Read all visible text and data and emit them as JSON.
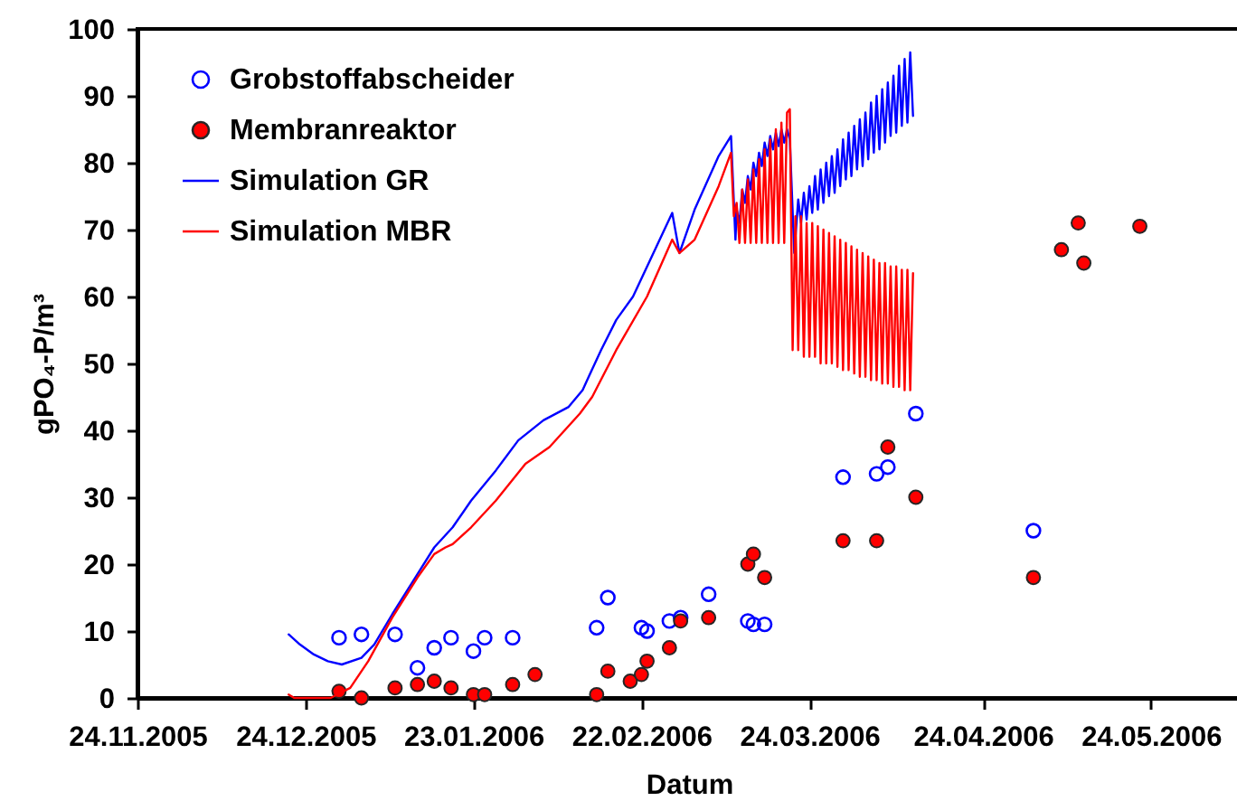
{
  "chart_data": {
    "type": "scatter",
    "xlabel": "Datum",
    "ylabel": "gPO₄-P/m³",
    "xlim": [
      "2005-11-24",
      "2006-06-09"
    ],
    "xticks": [
      {
        "value": "2005-11-24",
        "label": "24.11.2005"
      },
      {
        "value": "2005-12-24",
        "label": "24.12.2005"
      },
      {
        "value": "2006-01-23",
        "label": "23.01.2006"
      },
      {
        "value": "2006-02-22",
        "label": "22.02.2006"
      },
      {
        "value": "2006-03-24",
        "label": "24.03.2006"
      },
      {
        "value": "2006-04-24",
        "label": "24.04.2006"
      },
      {
        "value": "2006-05-24",
        "label": "24.05.2006"
      }
    ],
    "ylim": [
      0,
      100
    ],
    "yticks": [
      0,
      10,
      20,
      30,
      40,
      50,
      60,
      70,
      80,
      90,
      100
    ],
    "legend": "top left",
    "series": [
      {
        "name": "Grobstoffabscheider",
        "marker": "circle",
        "color": "#0000ff",
        "x": [
          "2005-12-30",
          "2006-01-03",
          "2006-01-09",
          "2006-01-13",
          "2006-01-16",
          "2006-01-19",
          "2006-01-23",
          "2006-01-25",
          "2006-01-30",
          "2006-02-14",
          "2006-02-16",
          "2006-02-22",
          "2006-02-23",
          "2006-02-27",
          "2006-03-01",
          "2006-03-06",
          "2006-03-13",
          "2006-03-14",
          "2006-03-16",
          "2006-03-30",
          "2006-04-05",
          "2006-04-07",
          "2006-04-12",
          "2006-05-03"
        ],
        "values": [
          9,
          9.5,
          9.5,
          4.5,
          7.5,
          9,
          7,
          9,
          9,
          10.5,
          15,
          10.5,
          10,
          11.5,
          12,
          15.5,
          11.5,
          11,
          11,
          33,
          33.5,
          34.5,
          42.5,
          25
        ]
      },
      {
        "name": "Membranreaktor",
        "marker": "circle",
        "color": "#ff0000",
        "x": [
          "2005-12-30",
          "2006-01-03",
          "2006-01-09",
          "2006-01-13",
          "2006-01-16",
          "2006-01-19",
          "2006-01-23",
          "2006-01-25",
          "2006-01-30",
          "2006-02-03",
          "2006-02-14",
          "2006-02-16",
          "2006-02-20",
          "2006-02-22",
          "2006-02-23",
          "2006-02-27",
          "2006-03-01",
          "2006-03-06",
          "2006-03-13",
          "2006-03-14",
          "2006-03-16",
          "2006-03-30",
          "2006-04-05",
          "2006-04-07",
          "2006-04-12",
          "2006-05-03",
          "2006-05-08",
          "2006-05-11",
          "2006-05-12",
          "2006-05-22"
        ],
        "values": [
          1,
          0,
          1.5,
          2,
          2.5,
          1.5,
          0.5,
          0.5,
          2,
          3.5,
          0.5,
          4,
          2.5,
          3.5,
          5.5,
          7.5,
          11.5,
          12,
          20,
          21.5,
          18,
          23.5,
          23.5,
          37.5,
          30,
          18,
          67,
          71,
          65,
          70.5
        ]
      },
      {
        "name": "Simulation GR",
        "type": "line",
        "color": "#0000ff",
        "x": [
          "2005-12-21",
          "2005-12-23",
          "2005-12-25T12:00",
          "2005-12-28",
          "2005-12-30T12:00",
          "2006-01-03",
          "2006-01-05T07:00",
          "2006-01-08T12:00",
          "2006-01-13",
          "2006-01-16",
          "2006-01-19T07:00",
          "2006-01-22T14:00",
          "2006-01-27",
          "2006-01-31",
          "2006-02-04T12:00",
          "2006-02-09",
          "2006-02-11T12:00",
          "2006-02-12T14:00",
          "2006-02-14T19:00",
          "2006-02-17T12:00",
          "2006-02-20T12:00",
          "2006-02-27T12:00",
          "2006-02-28T19:00",
          "2006-03-03T12:00",
          "2006-03-07T19:00",
          "2006-03-10",
          "2006-03-10T19:00",
          "2006-03-11",
          "2006-03-11T12:00",
          "2006-03-12",
          "2006-03-12T12:00",
          "2006-03-13",
          "2006-03-13T12:00",
          "2006-03-14",
          "2006-03-14T12:00",
          "2006-03-15",
          "2006-03-15T12:00",
          "2006-03-16",
          "2006-03-16T12:00",
          "2006-03-17",
          "2006-03-17T12:00",
          "2006-03-18",
          "2006-03-18T12:00",
          "2006-03-19",
          "2006-03-19T12:00",
          "2006-03-20",
          "2006-03-20T12:00",
          "2006-03-21T07:00",
          "2006-03-22",
          "2006-03-22T12:00",
          "2006-03-23",
          "2006-03-23T12:00",
          "2006-03-24",
          "2006-03-24T12:00",
          "2006-03-25",
          "2006-03-25T12:00",
          "2006-03-26",
          "2006-03-26T12:00",
          "2006-03-27",
          "2006-03-27T12:00",
          "2006-03-28",
          "2006-03-28T12:00",
          "2006-03-29",
          "2006-03-29T12:00",
          "2006-03-30",
          "2006-03-30T12:00",
          "2006-03-31",
          "2006-03-31T12:00",
          "2006-04-01",
          "2006-04-01T12:00",
          "2006-04-02",
          "2006-04-02T12:00",
          "2006-04-03",
          "2006-04-03T12:00",
          "2006-04-04",
          "2006-04-04T12:00",
          "2006-04-05",
          "2006-04-05T12:00",
          "2006-04-06",
          "2006-04-06T12:00",
          "2006-04-07",
          "2006-04-07T12:00",
          "2006-04-08",
          "2006-04-08T12:00",
          "2006-04-09",
          "2006-04-09T12:00",
          "2006-04-10",
          "2006-04-10T12:00",
          "2006-04-11",
          "2006-04-11T12:00"
        ],
        "values": [
          9.5,
          8,
          6.5,
          5.5,
          5,
          6,
          8,
          12.5,
          18.5,
          22.5,
          25.5,
          29.5,
          34,
          38.5,
          41.5,
          43.5,
          46,
          48,
          52,
          56.5,
          60,
          72.5,
          66.5,
          73,
          81,
          84,
          68.5,
          73,
          71,
          76,
          74,
          78,
          76,
          80,
          78,
          81.5,
          79.5,
          83,
          81,
          84,
          82,
          84.5,
          82.5,
          85,
          83,
          85,
          83.5,
          66.5,
          74.5,
          71,
          75.5,
          71.5,
          76.5,
          72.5,
          78,
          73,
          79,
          74,
          80,
          75,
          81,
          75.5,
          82,
          76.5,
          83.5,
          77.5,
          84.5,
          78,
          85.5,
          79,
          86.5,
          79.5,
          87.5,
          80.5,
          89,
          81.5,
          90,
          82,
          91,
          83,
          92,
          84,
          93,
          84.5,
          94.5,
          85.5,
          95.5,
          86,
          96.5,
          87
        ]
      },
      {
        "name": "Simulation MBR",
        "type": "line",
        "color": "#ff0000",
        "x": [
          "2005-12-21",
          "2005-12-22",
          "2005-12-28T12:00",
          "2006-01-01",
          "2006-01-04T05:00",
          "2006-01-08T12:00",
          "2006-01-13",
          "2006-01-16",
          "2006-01-18",
          "2006-01-19T07:00",
          "2006-01-22T14:00",
          "2006-01-27",
          "2006-02-01T07:00",
          "2006-02-05T14:00",
          "2006-02-11",
          "2006-02-13T05:00",
          "2006-02-17T12:00",
          "2006-02-23",
          "2006-02-27T12:00",
          "2006-02-28T19:00",
          "2006-03-03T12:00",
          "2006-03-07T19:00",
          "2006-03-10",
          "2006-03-10T12:00",
          "2006-03-11",
          "2006-03-11T12:00",
          "2006-03-12",
          "2006-03-12T12:00",
          "2006-03-13",
          "2006-03-13T12:00",
          "2006-03-14",
          "2006-03-14T12:00",
          "2006-03-15",
          "2006-03-15T12:00",
          "2006-03-16",
          "2006-03-16T12:00",
          "2006-03-17",
          "2006-03-17T12:00",
          "2006-03-18",
          "2006-03-18T12:00",
          "2006-03-19",
          "2006-03-19T12:00",
          "2006-03-20",
          "2006-03-20T12:00",
          "2006-03-21",
          "2006-03-21T12:00",
          "2006-03-22",
          "2006-03-22T12:00",
          "2006-03-23",
          "2006-03-23T12:00",
          "2006-03-24",
          "2006-03-24T12:00",
          "2006-03-25",
          "2006-03-25T12:00",
          "2006-03-26",
          "2006-03-26T12:00",
          "2006-03-27",
          "2006-03-27T12:00",
          "2006-03-28",
          "2006-03-28T12:00",
          "2006-03-29",
          "2006-03-29T12:00",
          "2006-03-30",
          "2006-03-30T12:00",
          "2006-03-31",
          "2006-03-31T12:00",
          "2006-04-01",
          "2006-04-01T12:00",
          "2006-04-02",
          "2006-04-02T12:00",
          "2006-04-03",
          "2006-04-03T12:00",
          "2006-04-04",
          "2006-04-04T12:00",
          "2006-04-05",
          "2006-04-05T12:00",
          "2006-04-06",
          "2006-04-06T12:00",
          "2006-04-07",
          "2006-04-07T12:00",
          "2006-04-08",
          "2006-04-08T12:00",
          "2006-04-09",
          "2006-04-09T12:00",
          "2006-04-10",
          "2006-04-10T12:00",
          "2006-04-11",
          "2006-04-11T12:00"
        ],
        "values": [
          0.5,
          0,
          0,
          1.5,
          5.5,
          12,
          18,
          21.5,
          22.5,
          23,
          25.5,
          29.5,
          35,
          37.5,
          42.5,
          45,
          52,
          60,
          68.5,
          66.5,
          68.5,
          76.5,
          81.5,
          72,
          74,
          68,
          76,
          68,
          77.5,
          68,
          79,
          68,
          80.5,
          68,
          82,
          68,
          83.5,
          68,
          85,
          68,
          86,
          68,
          87.5,
          88,
          52,
          72,
          52,
          72,
          51,
          71,
          51,
          71,
          51,
          70.5,
          50,
          70,
          50,
          69.5,
          50,
          69,
          49.5,
          68.5,
          49,
          68,
          49,
          67.5,
          48.5,
          67,
          48,
          66.5,
          48,
          66,
          47.5,
          65.5,
          47.5,
          65,
          47,
          65,
          47,
          64.5,
          46.5,
          64.5,
          46.5,
          64,
          46,
          64,
          46,
          63.5
        ]
      }
    ]
  }
}
